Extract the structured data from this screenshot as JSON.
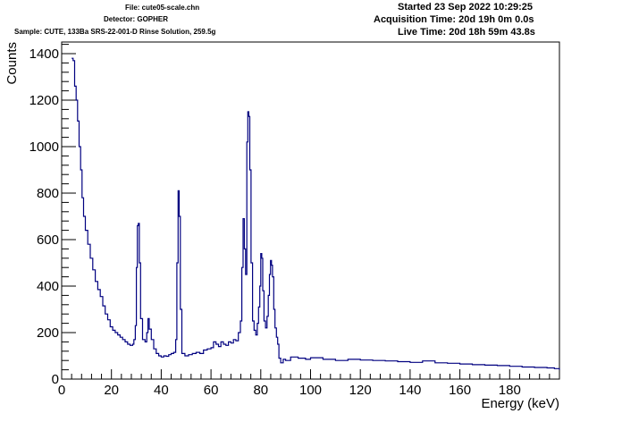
{
  "header": {
    "file": "File: cute05-scale.chn",
    "detector": "Detector: GOPHER",
    "sample": "Sample: CUTE, 133Ba SRS-22-001-D Rinse Solution, 259.5g",
    "started": "Started 23 Sep 2022 10:29:25",
    "acquisition": "Acquisition Time: 20d 19h 0m 0.0s",
    "live": "Live Time: 20d 18h 59m 43.8s"
  },
  "chart_data": {
    "type": "line",
    "title": "",
    "xlabel": "Energy (keV)",
    "ylabel": "Counts",
    "xlim": [
      0,
      200
    ],
    "ylim": [
      0,
      1450
    ],
    "xticks": [
      "0",
      "20",
      "40",
      "60",
      "80",
      "100",
      "120",
      "140",
      "160",
      "180"
    ],
    "yticks": [
      "0",
      "200",
      "400",
      "600",
      "800",
      "1000",
      "1200",
      "1400"
    ],
    "line_color": "#000080",
    "grid": false,
    "series": [
      {
        "values": [
          [
            4.0,
            1380
          ],
          [
            4.6,
            1370
          ],
          [
            5.2,
            1260
          ],
          [
            5.8,
            1200
          ],
          [
            6.4,
            1110
          ],
          [
            7.0,
            1000
          ],
          [
            7.6,
            900
          ],
          [
            8.2,
            780
          ],
          [
            8.8,
            700
          ],
          [
            9.5,
            640
          ],
          [
            10.5,
            580
          ],
          [
            11.5,
            520
          ],
          [
            12.5,
            470
          ],
          [
            13.5,
            420
          ],
          [
            14.5,
            385
          ],
          [
            15.5,
            355
          ],
          [
            16.5,
            315
          ],
          [
            17.5,
            280
          ],
          [
            18.5,
            255
          ],
          [
            19.5,
            225
          ],
          [
            20.5,
            210
          ],
          [
            21.5,
            200
          ],
          [
            22.5,
            190
          ],
          [
            23.5,
            180
          ],
          [
            24.5,
            170
          ],
          [
            25.5,
            160
          ],
          [
            26.5,
            150
          ],
          [
            27.5,
            145
          ],
          [
            28.5,
            150
          ],
          [
            29.0,
            170
          ],
          [
            29.6,
            230
          ],
          [
            30.0,
            480
          ],
          [
            30.4,
            660
          ],
          [
            30.8,
            670
          ],
          [
            31.2,
            500
          ],
          [
            31.7,
            260
          ],
          [
            32.5,
            170
          ],
          [
            33.5,
            160
          ],
          [
            34.2,
            200
          ],
          [
            34.7,
            260
          ],
          [
            35.2,
            215
          ],
          [
            36.0,
            170
          ],
          [
            37.0,
            130
          ],
          [
            38.0,
            110
          ],
          [
            39.0,
            100
          ],
          [
            40.0,
            95
          ],
          [
            41.0,
            100
          ],
          [
            42.0,
            98
          ],
          [
            43.0,
            105
          ],
          [
            44.0,
            110
          ],
          [
            45.0,
            115
          ],
          [
            45.8,
            170
          ],
          [
            46.3,
            500
          ],
          [
            46.8,
            810
          ],
          [
            47.2,
            700
          ],
          [
            47.7,
            300
          ],
          [
            48.3,
            110
          ],
          [
            49.5,
            100
          ],
          [
            51.0,
            105
          ],
          [
            52.5,
            110
          ],
          [
            54.0,
            115
          ],
          [
            55.5,
            110
          ],
          [
            57.0,
            125
          ],
          [
            58.5,
            130
          ],
          [
            60.0,
            135
          ],
          [
            61.0,
            160
          ],
          [
            62.0,
            150
          ],
          [
            63.0,
            140
          ],
          [
            64.0,
            160
          ],
          [
            65.0,
            150
          ],
          [
            66.0,
            145
          ],
          [
            67.0,
            160
          ],
          [
            68.0,
            155
          ],
          [
            69.0,
            170
          ],
          [
            70.0,
            165
          ],
          [
            71.0,
            200
          ],
          [
            71.8,
            250
          ],
          [
            72.4,
            480
          ],
          [
            72.9,
            690
          ],
          [
            73.4,
            560
          ],
          [
            73.9,
            450
          ],
          [
            74.4,
            1020
          ],
          [
            74.8,
            1150
          ],
          [
            75.2,
            1130
          ],
          [
            75.6,
            900
          ],
          [
            76.1,
            500
          ],
          [
            76.7,
            250
          ],
          [
            77.3,
            210
          ],
          [
            78.0,
            190
          ],
          [
            78.6,
            240
          ],
          [
            79.1,
            310
          ],
          [
            79.6,
            400
          ],
          [
            80.0,
            540
          ],
          [
            80.4,
            520
          ],
          [
            80.8,
            380
          ],
          [
            81.3,
            250
          ],
          [
            81.9,
            220
          ],
          [
            82.5,
            270
          ],
          [
            83.0,
            360
          ],
          [
            83.5,
            450
          ],
          [
            83.9,
            510
          ],
          [
            84.3,
            490
          ],
          [
            84.7,
            440
          ],
          [
            85.2,
            300
          ],
          [
            85.7,
            220
          ],
          [
            86.3,
            180
          ],
          [
            86.8,
            150
          ],
          [
            87.3,
            90
          ],
          [
            88.0,
            70
          ],
          [
            89.0,
            85
          ],
          [
            90.0,
            80
          ],
          [
            92.0,
            95
          ],
          [
            95.0,
            90
          ],
          [
            98.0,
            85
          ],
          [
            100.0,
            92
          ],
          [
            105.0,
            85
          ],
          [
            110.0,
            80
          ],
          [
            115.0,
            85
          ],
          [
            120.0,
            82
          ],
          [
            125.0,
            80
          ],
          [
            130.0,
            78
          ],
          [
            135.0,
            75
          ],
          [
            140.0,
            72
          ],
          [
            145.0,
            78
          ],
          [
            150.0,
            70
          ],
          [
            155.0,
            68
          ],
          [
            160.0,
            65
          ],
          [
            165.0,
            62
          ],
          [
            170.0,
            60
          ],
          [
            175.0,
            58
          ],
          [
            180.0,
            55
          ],
          [
            185.0,
            52
          ],
          [
            190.0,
            50
          ],
          [
            195.0,
            48
          ],
          [
            198.0,
            45
          ],
          [
            200.0,
            40
          ]
        ]
      }
    ]
  }
}
